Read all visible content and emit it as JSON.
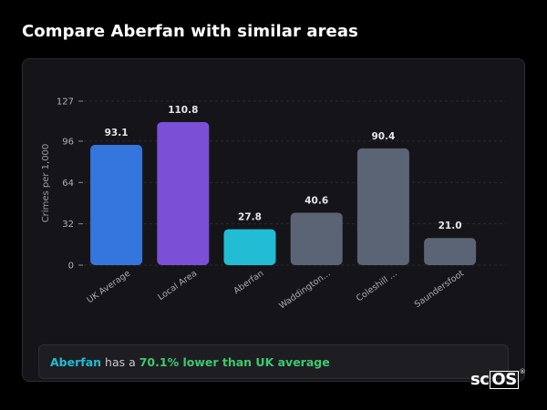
{
  "header": {
    "title": "Compare Aberfan with similar areas"
  },
  "chart_data": {
    "type": "bar",
    "title": "",
    "xlabel": "",
    "ylabel": "Crimes per 1,000",
    "ylim": [
      0,
      127
    ],
    "yticks": [
      0,
      32,
      64,
      96,
      127
    ],
    "grid": true,
    "categories": [
      "UK Average",
      "Local Area",
      "Aberfan",
      "Waddington...",
      "Coleshill ...",
      "Saundersfoot"
    ],
    "values": [
      93.1,
      110.8,
      27.8,
      40.6,
      90.4,
      21.0
    ],
    "value_labels": [
      "93.1",
      "110.8",
      "27.8",
      "40.6",
      "90.4",
      "21.0"
    ],
    "colors": [
      "#3576dc",
      "#7b4fd6",
      "#22bcd4",
      "#5a6475",
      "#5a6475",
      "#5a6475"
    ]
  },
  "summary": {
    "area": "Aberfan",
    "middle": " has a ",
    "difference": "70.1% lower than UK average"
  },
  "brand": {
    "prefix": "sc",
    "boxed": "OS",
    "mark": "®"
  }
}
